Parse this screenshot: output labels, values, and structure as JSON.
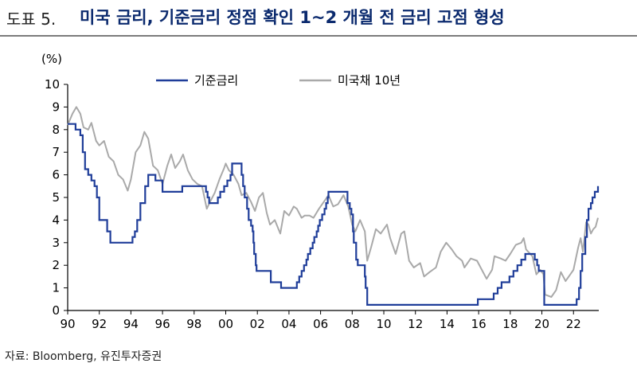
{
  "header": {
    "figure_label": "도표 5.",
    "title": "미국 금리, 기준금리 정점 확인 1~2 개월 전 금리 고점 형성"
  },
  "source": "자료: Bloomberg, 유진투자증권",
  "colors": {
    "policy_rate": "#1f3d99",
    "treasury_10y": "#a9a9a9",
    "axis": "#000000",
    "title": "#0b2a6e"
  },
  "chart_data": {
    "type": "line",
    "ylabel": "(%)",
    "ylim": [
      0,
      10
    ],
    "yticks": [
      0,
      1,
      2,
      3,
      4,
      5,
      6,
      7,
      8,
      9,
      10
    ],
    "xlim": [
      1990,
      2023.6
    ],
    "xticks": [
      1990,
      1992,
      1994,
      1996,
      1998,
      2000,
      2002,
      2004,
      2006,
      2008,
      2010,
      2012,
      2014,
      2016,
      2018,
      2020,
      2022
    ],
    "xtick_labels": [
      "90",
      "92",
      "94",
      "96",
      "98",
      "00",
      "02",
      "04",
      "06",
      "08",
      "10",
      "12",
      "14",
      "16",
      "18",
      "20",
      "22"
    ],
    "legend": [
      "기준금리",
      "미국채 10년"
    ],
    "legend_position": "top",
    "series": [
      {
        "name": "기준금리",
        "step": true,
        "points": [
          [
            1990.0,
            8.25
          ],
          [
            1990.5,
            8.0
          ],
          [
            1990.8,
            7.75
          ],
          [
            1990.95,
            7.0
          ],
          [
            1991.1,
            6.25
          ],
          [
            1991.3,
            6.0
          ],
          [
            1991.5,
            5.75
          ],
          [
            1991.7,
            5.5
          ],
          [
            1991.85,
            5.0
          ],
          [
            1992.0,
            4.0
          ],
          [
            1992.5,
            3.5
          ],
          [
            1992.7,
            3.0
          ],
          [
            1994.1,
            3.25
          ],
          [
            1994.25,
            3.5
          ],
          [
            1994.4,
            4.0
          ],
          [
            1994.6,
            4.75
          ],
          [
            1994.9,
            5.5
          ],
          [
            1995.1,
            6.0
          ],
          [
            1995.55,
            5.75
          ],
          [
            1996.0,
            5.25
          ],
          [
            1997.25,
            5.5
          ],
          [
            1998.75,
            5.25
          ],
          [
            1998.85,
            5.0
          ],
          [
            1998.95,
            4.75
          ],
          [
            1999.5,
            5.0
          ],
          [
            1999.65,
            5.25
          ],
          [
            1999.9,
            5.5
          ],
          [
            2000.1,
            5.75
          ],
          [
            2000.3,
            6.0
          ],
          [
            2000.4,
            6.5
          ],
          [
            2001.0,
            6.0
          ],
          [
            2001.1,
            5.5
          ],
          [
            2001.2,
            5.0
          ],
          [
            2001.35,
            4.5
          ],
          [
            2001.45,
            4.0
          ],
          [
            2001.6,
            3.75
          ],
          [
            2001.7,
            3.5
          ],
          [
            2001.75,
            3.0
          ],
          [
            2001.8,
            2.5
          ],
          [
            2001.9,
            2.0
          ],
          [
            2001.95,
            1.75
          ],
          [
            2002.85,
            1.25
          ],
          [
            2003.5,
            1.0
          ],
          [
            2004.5,
            1.25
          ],
          [
            2004.65,
            1.5
          ],
          [
            2004.8,
            1.75
          ],
          [
            2004.95,
            2.0
          ],
          [
            2005.1,
            2.25
          ],
          [
            2005.2,
            2.5
          ],
          [
            2005.35,
            2.75
          ],
          [
            2005.5,
            3.0
          ],
          [
            2005.6,
            3.25
          ],
          [
            2005.75,
            3.5
          ],
          [
            2005.85,
            3.75
          ],
          [
            2005.95,
            4.0
          ],
          [
            2006.1,
            4.25
          ],
          [
            2006.25,
            4.5
          ],
          [
            2006.35,
            4.75
          ],
          [
            2006.45,
            5.0
          ],
          [
            2006.5,
            5.25
          ],
          [
            2007.7,
            4.75
          ],
          [
            2007.85,
            4.5
          ],
          [
            2007.95,
            4.25
          ],
          [
            2008.05,
            3.5
          ],
          [
            2008.1,
            3.0
          ],
          [
            2008.25,
            2.25
          ],
          [
            2008.35,
            2.0
          ],
          [
            2008.8,
            1.5
          ],
          [
            2008.85,
            1.0
          ],
          [
            2008.95,
            0.25
          ],
          [
            2015.95,
            0.5
          ],
          [
            2016.95,
            0.75
          ],
          [
            2017.2,
            1.0
          ],
          [
            2017.45,
            1.25
          ],
          [
            2017.95,
            1.5
          ],
          [
            2018.2,
            1.75
          ],
          [
            2018.45,
            2.0
          ],
          [
            2018.7,
            2.25
          ],
          [
            2018.95,
            2.5
          ],
          [
            2019.55,
            2.25
          ],
          [
            2019.7,
            2.0
          ],
          [
            2019.8,
            1.75
          ],
          [
            2020.15,
            0.25
          ],
          [
            2022.2,
            0.5
          ],
          [
            2022.35,
            1.0
          ],
          [
            2022.45,
            1.75
          ],
          [
            2022.55,
            2.5
          ],
          [
            2022.75,
            3.25
          ],
          [
            2022.85,
            4.0
          ],
          [
            2022.95,
            4.5
          ],
          [
            2023.1,
            4.75
          ],
          [
            2023.2,
            5.0
          ],
          [
            2023.35,
            5.25
          ],
          [
            2023.55,
            5.5
          ]
        ]
      },
      {
        "name": "미국채 10년",
        "step": false,
        "points": [
          [
            1990.0,
            8.2
          ],
          [
            1990.3,
            8.7
          ],
          [
            1990.55,
            9.0
          ],
          [
            1990.8,
            8.7
          ],
          [
            1991.0,
            8.1
          ],
          [
            1991.3,
            8.0
          ],
          [
            1991.5,
            8.3
          ],
          [
            1991.8,
            7.5
          ],
          [
            1992.0,
            7.3
          ],
          [
            1992.3,
            7.5
          ],
          [
            1992.6,
            6.8
          ],
          [
            1992.9,
            6.6
          ],
          [
            1993.2,
            6.0
          ],
          [
            1993.5,
            5.8
          ],
          [
            1993.8,
            5.3
          ],
          [
            1994.0,
            5.8
          ],
          [
            1994.3,
            7.0
          ],
          [
            1994.6,
            7.3
          ],
          [
            1994.85,
            7.9
          ],
          [
            1995.1,
            7.6
          ],
          [
            1995.4,
            6.4
          ],
          [
            1995.7,
            6.2
          ],
          [
            1996.0,
            5.6
          ],
          [
            1996.3,
            6.4
          ],
          [
            1996.55,
            6.9
          ],
          [
            1996.8,
            6.3
          ],
          [
            1997.1,
            6.6
          ],
          [
            1997.3,
            6.9
          ],
          [
            1997.6,
            6.2
          ],
          [
            1997.9,
            5.8
          ],
          [
            1998.2,
            5.6
          ],
          [
            1998.5,
            5.5
          ],
          [
            1998.8,
            4.5
          ],
          [
            1999.0,
            4.8
          ],
          [
            1999.3,
            5.2
          ],
          [
            1999.6,
            5.8
          ],
          [
            1999.9,
            6.3
          ],
          [
            2000.0,
            6.5
          ],
          [
            2000.2,
            6.2
          ],
          [
            2000.5,
            6.0
          ],
          [
            2000.8,
            5.6
          ],
          [
            2001.0,
            5.1
          ],
          [
            2001.3,
            5.2
          ],
          [
            2001.6,
            4.8
          ],
          [
            2001.85,
            4.4
          ],
          [
            2002.1,
            5.0
          ],
          [
            2002.35,
            5.2
          ],
          [
            2002.6,
            4.3
          ],
          [
            2002.8,
            3.8
          ],
          [
            2003.1,
            4.0
          ],
          [
            2003.45,
            3.4
          ],
          [
            2003.7,
            4.4
          ],
          [
            2004.0,
            4.2
          ],
          [
            2004.3,
            4.6
          ],
          [
            2004.5,
            4.5
          ],
          [
            2004.8,
            4.1
          ],
          [
            2005.0,
            4.2
          ],
          [
            2005.3,
            4.2
          ],
          [
            2005.55,
            4.1
          ],
          [
            2005.9,
            4.5
          ],
          [
            2006.2,
            4.8
          ],
          [
            2006.5,
            5.1
          ],
          [
            2006.8,
            4.6
          ],
          [
            2007.1,
            4.7
          ],
          [
            2007.45,
            5.1
          ],
          [
            2007.75,
            4.6
          ],
          [
            2008.0,
            3.8
          ],
          [
            2008.2,
            3.5
          ],
          [
            2008.5,
            4.0
          ],
          [
            2008.8,
            3.5
          ],
          [
            2008.95,
            2.2
          ],
          [
            2009.2,
            2.8
          ],
          [
            2009.5,
            3.6
          ],
          [
            2009.8,
            3.4
          ],
          [
            2010.2,
            3.8
          ],
          [
            2010.4,
            3.2
          ],
          [
            2010.75,
            2.5
          ],
          [
            2011.1,
            3.4
          ],
          [
            2011.3,
            3.5
          ],
          [
            2011.6,
            2.2
          ],
          [
            2011.9,
            1.9
          ],
          [
            2012.3,
            2.1
          ],
          [
            2012.55,
            1.5
          ],
          [
            2012.9,
            1.7
          ],
          [
            2013.3,
            1.9
          ],
          [
            2013.6,
            2.6
          ],
          [
            2013.95,
            3.0
          ],
          [
            2014.3,
            2.7
          ],
          [
            2014.6,
            2.4
          ],
          [
            2014.95,
            2.2
          ],
          [
            2015.1,
            1.9
          ],
          [
            2015.5,
            2.3
          ],
          [
            2015.9,
            2.2
          ],
          [
            2016.2,
            1.8
          ],
          [
            2016.5,
            1.4
          ],
          [
            2016.85,
            1.8
          ],
          [
            2017.0,
            2.4
          ],
          [
            2017.4,
            2.3
          ],
          [
            2017.7,
            2.2
          ],
          [
            2018.0,
            2.5
          ],
          [
            2018.35,
            2.9
          ],
          [
            2018.7,
            3.0
          ],
          [
            2018.85,
            3.2
          ],
          [
            2019.0,
            2.7
          ],
          [
            2019.4,
            2.4
          ],
          [
            2019.65,
            1.6
          ],
          [
            2019.9,
            1.8
          ],
          [
            2020.1,
            1.6
          ],
          [
            2020.2,
            0.7
          ],
          [
            2020.6,
            0.6
          ],
          [
            2020.9,
            0.9
          ],
          [
            2021.2,
            1.7
          ],
          [
            2021.5,
            1.3
          ],
          [
            2021.8,
            1.6
          ],
          [
            2022.0,
            1.8
          ],
          [
            2022.3,
            2.8
          ],
          [
            2022.45,
            3.2
          ],
          [
            2022.6,
            2.6
          ],
          [
            2022.8,
            3.9
          ],
          [
            2022.95,
            3.8
          ],
          [
            2023.1,
            3.4
          ],
          [
            2023.25,
            3.6
          ],
          [
            2023.4,
            3.7
          ],
          [
            2023.55,
            4.1
          ]
        ]
      }
    ]
  }
}
